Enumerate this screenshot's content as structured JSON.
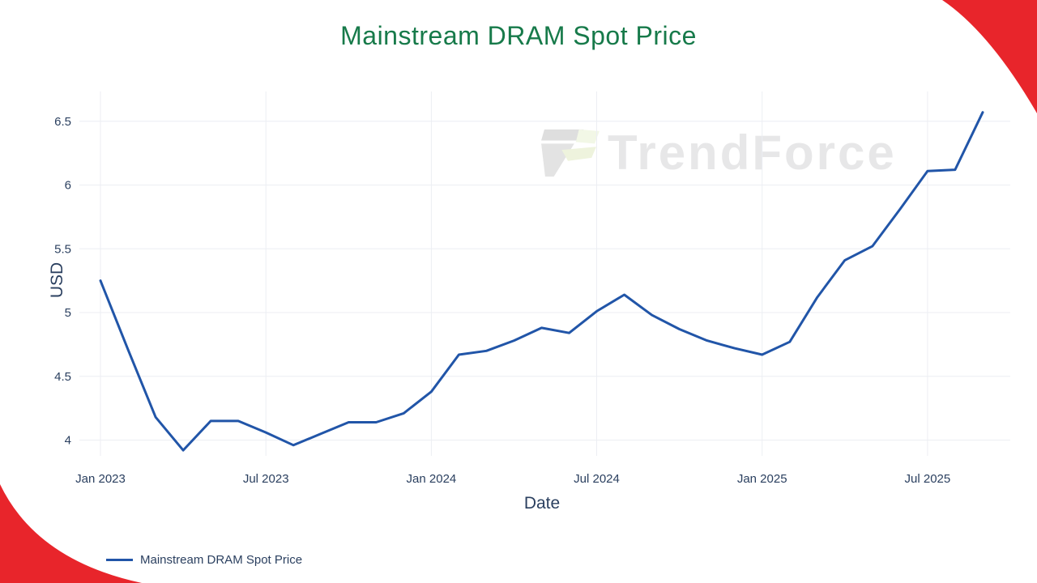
{
  "title": {
    "text": "Mainstream DRAM Spot Price",
    "color": "#177a4a"
  },
  "watermark": {
    "text": "TrendForce"
  },
  "legend": {
    "label": "Mainstream DRAM Spot Price"
  },
  "decorations": {
    "corner_color": "#e8252b"
  },
  "chart_data": {
    "type": "line",
    "title": "Mainstream DRAM Spot Price",
    "xlabel": "Date",
    "ylabel": "USD",
    "x": [
      "Jan 2023",
      "Feb 2023",
      "Mar 2023",
      "Apr 2023",
      "May 2023",
      "Jun 2023",
      "Jul 2023",
      "Aug 2023",
      "Sep 2023",
      "Oct 2023",
      "Nov 2023",
      "Dec 2023",
      "Jan 2024",
      "Feb 2024",
      "Mar 2024",
      "Apr 2024",
      "May 2024",
      "Jun 2024",
      "Jul 2024",
      "Aug 2024",
      "Sep 2024",
      "Oct 2024",
      "Nov 2024",
      "Dec 2024",
      "Jan 2025",
      "Feb 2025",
      "Mar 2025",
      "Apr 2025",
      "May 2025",
      "Jun 2025",
      "Jul 2025",
      "Aug 2025",
      "Sep 2025"
    ],
    "series": [
      {
        "name": "Mainstream DRAM Spot Price",
        "color": "#2155a8",
        "values": [
          5.25,
          4.71,
          4.18,
          3.92,
          4.15,
          4.15,
          4.06,
          3.96,
          4.05,
          4.14,
          4.14,
          4.21,
          4.38,
          4.67,
          4.7,
          4.78,
          4.88,
          4.84,
          5.01,
          5.14,
          4.98,
          4.87,
          4.78,
          4.72,
          4.67,
          4.77,
          5.12,
          5.41,
          5.52,
          5.81,
          6.11,
          6.12,
          6.57
        ]
      }
    ],
    "x_ticks": [
      {
        "index": 0,
        "label": "Jan 2023"
      },
      {
        "index": 6,
        "label": "Jul 2023"
      },
      {
        "index": 12,
        "label": "Jan 2024"
      },
      {
        "index": 18,
        "label": "Jul 2024"
      },
      {
        "index": 24,
        "label": "Jan 2025"
      },
      {
        "index": 30,
        "label": "Jul 2025"
      }
    ],
    "y_ticks": [
      4,
      4.5,
      5,
      5.5,
      6,
      6.5
    ],
    "ylim": [
      3.75,
      6.75
    ],
    "grid": true,
    "legend_position": "bottom-left"
  }
}
